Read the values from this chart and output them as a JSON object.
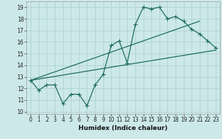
{
  "xlabel": "Humidex (Indice chaleur)",
  "xlim": [
    -0.5,
    23.5
  ],
  "ylim": [
    9.8,
    19.5
  ],
  "yticks": [
    10,
    11,
    12,
    13,
    14,
    15,
    16,
    17,
    18,
    19
  ],
  "xticks": [
    0,
    1,
    2,
    3,
    4,
    5,
    6,
    7,
    8,
    9,
    10,
    11,
    12,
    13,
    14,
    15,
    16,
    17,
    18,
    19,
    20,
    21,
    22,
    23
  ],
  "xtick_labels": [
    "0",
    "1",
    "2",
    "3",
    "4",
    "5",
    "6",
    "7",
    "8",
    "9",
    "10",
    "11",
    "12",
    "13",
    "14",
    "15",
    "16",
    "17",
    "18",
    "19",
    "20",
    "21",
    "22",
    "23"
  ],
  "background_color": "#cce8e8",
  "grid_color": "#aacccc",
  "line_color": "#1a6b5a",
  "line1_x": [
    0,
    1,
    2,
    3,
    4,
    5,
    6,
    7,
    8,
    9,
    10,
    11,
    12,
    13,
    14,
    15,
    16,
    17,
    18,
    19,
    20,
    21,
    22,
    23
  ],
  "line1_y": [
    12.7,
    11.85,
    12.3,
    12.3,
    10.7,
    11.5,
    11.5,
    10.5,
    12.3,
    13.2,
    15.7,
    16.1,
    14.2,
    17.5,
    19.0,
    18.85,
    19.0,
    18.0,
    18.2,
    17.8,
    17.1,
    16.7,
    16.1,
    15.5
  ],
  "line2_x": [
    0,
    23
  ],
  "line2_y": [
    12.7,
    15.3
  ],
  "line3_x": [
    0,
    21
  ],
  "line3_y": [
    12.7,
    17.8
  ],
  "marker_size": 2.5,
  "line_width": 0.9,
  "tick_fontsize": 5.5,
  "xlabel_fontsize": 6.5
}
